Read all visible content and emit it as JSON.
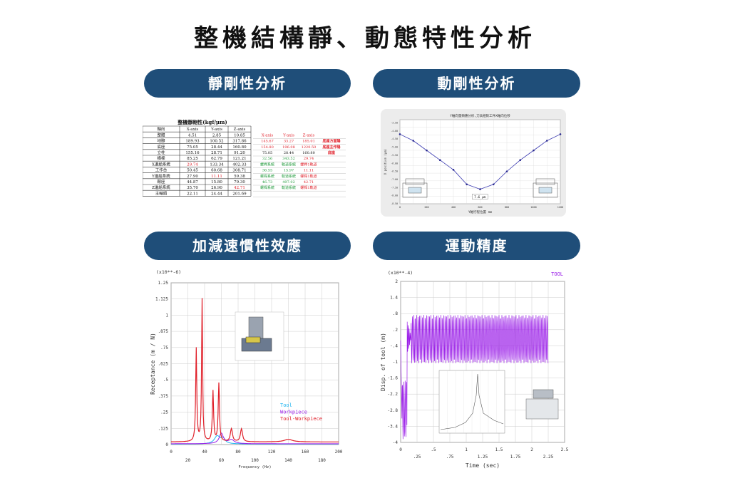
{
  "page": {
    "title": "整機結構靜、動態特性分析",
    "sections": {
      "static": "靜剛性分析",
      "dynamic": "動剛性分析",
      "accel": "加減速慣性效應",
      "motion": "運動精度"
    }
  },
  "colors": {
    "pill": "#1f4e79",
    "red": "#e0202a",
    "purple": "#9b1fe8",
    "blue": "#2a5fc7",
    "cyan": "#1fb4f0",
    "green": "#1f9a3a"
  },
  "chart_data": [
    {
      "type": "table",
      "title": "整機靜剛性(kgf/μm)",
      "columns": [
        "軸向",
        "X-axis",
        "Y-axis",
        "Z-axis"
      ],
      "rows": [
        [
          "整體",
          "4.51",
          "2.85",
          "10.85"
        ],
        [
          "地腳",
          "189.93",
          "100.52",
          "317.86"
        ],
        [
          "底座",
          "75.05",
          "28.44",
          "160.80"
        ],
        [
          "立柱",
          "155.16",
          "28.71",
          "91.20"
        ],
        [
          "橫樑",
          "85.25",
          "62.79",
          "121.21"
        ],
        [
          "X進給系統",
          "29.74",
          "133.34",
          "402.33"
        ],
        [
          "工作台",
          "50.45",
          "60.68",
          "308.71"
        ],
        [
          "Y進給系統",
          "27.90",
          "11.11",
          "59.38"
        ],
        [
          "鞍座",
          "44.87",
          "15.80",
          "79.30"
        ],
        [
          "Z進給系統",
          "35.70",
          "26.90",
          "42.71"
        ],
        [
          "主軸頭",
          "22.11",
          "24.44",
          "201.69"
        ]
      ],
      "extra_header": [
        "X-axis",
        "Y-axis",
        "Z-axis"
      ],
      "extra_rows": [
        [
          "145.67",
          "33.27",
          "185.01",
          "底座方面陽"
        ],
        [
          "154.80",
          "196.08",
          "1220.50",
          "底座主作陽"
        ],
        [
          "75.05",
          "28.44",
          "160.80",
          "底座"
        ],
        [
          "32.56",
          "343.52",
          "29.74",
          ""
        ],
        [
          "螺桿系統",
          "軌道系統",
          "螺桿1軌道",
          ""
        ],
        [
          "36.55",
          "15.97",
          "11.11",
          ""
        ],
        [
          "螺桿系統",
          "軌道系統",
          "螺桿1軌道",
          ""
        ],
        [
          "46.73",
          "497.02",
          "42.71",
          ""
        ],
        [
          "螺桿系統",
          "軌道系統",
          "螺桿1軌道",
          ""
        ]
      ]
    },
    {
      "type": "line",
      "title": "Y軸向量頻應分析,刀具相對工件X軸向位移",
      "xlabel": "Y軸行程位置 mm",
      "ylabel": "X position (μm)",
      "x": [
        0,
        100,
        200,
        300,
        400,
        500,
        600,
        700,
        800,
        900,
        1000,
        1100,
        1200
      ],
      "y": [
        -4.2,
        -4.6,
        -5.2,
        -5.8,
        -6.4,
        -7.3,
        -7.6,
        -7.3,
        -6.5,
        -5.8,
        -5.2,
        -4.6,
        -4.2
      ],
      "ylim": [
        -8.5,
        -3.3
      ],
      "annotation": "7.6 μm"
    },
    {
      "type": "line",
      "title": "(x10**-6)",
      "xlabel": "Frequency (Hz)",
      "ylabel": "Receptance (m / N)",
      "xlim": [
        0,
        200
      ],
      "ylim": [
        0,
        1.25
      ],
      "yticks": [
        "0",
        ".125",
        ".25",
        ".375",
        ".5",
        ".625",
        ".75",
        ".875",
        "1",
        "1.125",
        "1.25"
      ],
      "xticks_top": [
        "0",
        "40",
        "80",
        "120",
        "160",
        "200"
      ],
      "xticks_bottom": [
        "20",
        "60",
        "100",
        "140",
        "180"
      ],
      "series": [
        {
          "name": "Tool",
          "color": "#1fb4f0"
        },
        {
          "name": "Workpiece",
          "color": "#9b1fe8"
        },
        {
          "name": "Tool-Workpiece",
          "color": "#e0202a"
        }
      ]
    },
    {
      "type": "line",
      "title": "(x10**-4)",
      "xlabel": "Time  (sec)",
      "ylabel": "Disp. of tool (m)",
      "xlim": [
        0,
        2.5
      ],
      "ylim": [
        -4,
        2
      ],
      "yticks": [
        "-4",
        "-3.4",
        "-2.8",
        "-2.2",
        "-1.6",
        "-1",
        "-.4",
        ".2",
        ".8",
        "1.4",
        "2"
      ],
      "xticks_top": [
        "0",
        ".5",
        "1",
        "1.5",
        "2",
        "2.5"
      ],
      "xticks_bottom": [
        ".25",
        ".75",
        "1.25",
        "1.75",
        "2.25"
      ],
      "series": [
        {
          "name": "TOOL",
          "color": "#9b1fe8"
        }
      ]
    }
  ]
}
